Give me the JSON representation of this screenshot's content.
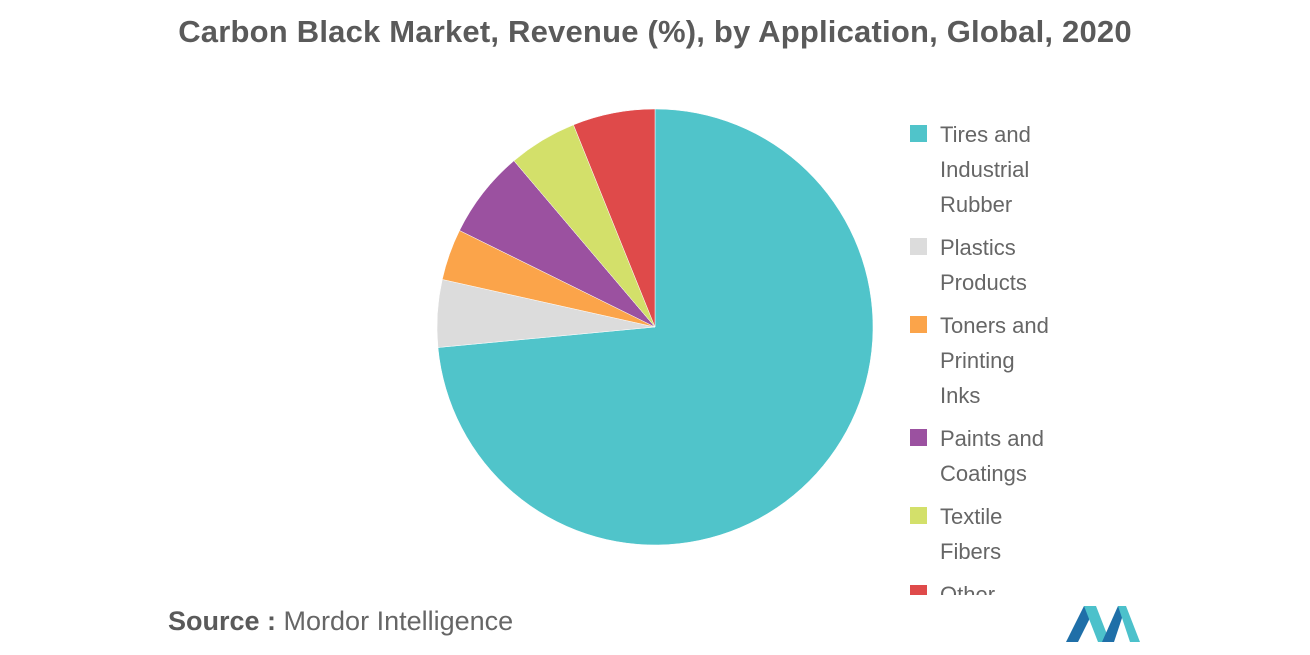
{
  "title": "Carbon Black Market, Revenue (%), by Application, Global, 2020",
  "chart_data": {
    "type": "pie",
    "title": "Carbon Black Market, Revenue (%), by Application, Global, 2020",
    "slices": [
      {
        "label": "Tires and Industrial Rubber",
        "value": 73.5,
        "color": "#50c4ca"
      },
      {
        "label": "Plastics Products",
        "value": 5.0,
        "color": "#dcdcdc"
      },
      {
        "label": "Toners and Printing Inks",
        "value": 3.8,
        "color": "#fba44a"
      },
      {
        "label": "Paints and Coatings",
        "value": 6.5,
        "color": "#9b51a0"
      },
      {
        "label": "Textile Fibers",
        "value": 5.1,
        "color": "#d3e06a"
      },
      {
        "label": "Other Applications",
        "value": 6.1,
        "color": "#df4a4a"
      }
    ],
    "legend_position": "right"
  },
  "source": {
    "label": "Source :",
    "text": "Mordor Intelligence"
  }
}
